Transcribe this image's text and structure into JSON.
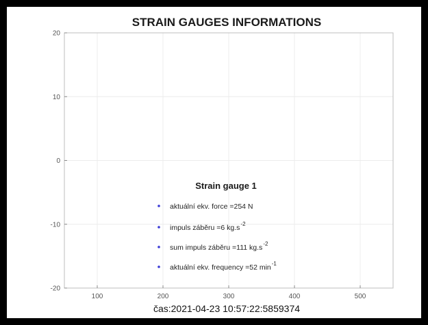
{
  "chart_data": {
    "type": "scatter",
    "title": "STRAIN GAUGES INFORMATIONS",
    "xlabel": "",
    "ylabel": "",
    "xlim": [
      50,
      550
    ],
    "ylim": [
      -20,
      20
    ],
    "xticks": [
      100,
      200,
      300,
      400,
      500
    ],
    "yticks": [
      -20,
      -10,
      0,
      10,
      20
    ],
    "grid": true,
    "series": []
  },
  "legend": {
    "title": "Strain gauge 1",
    "marker_color": "#3b3bd6",
    "items": [
      {
        "text": "aktuální ekv. force =254 N",
        "sup": ""
      },
      {
        "text": "impuls záběru =6 kg.s",
        "sup": "-2"
      },
      {
        "text": "sum impuls záběru =111 kg.s",
        "sup": "-2"
      },
      {
        "text": "aktuální ekv. frequency  =52 min",
        "sup": "-1"
      }
    ]
  },
  "footer": {
    "timestamp": "čas:2021-04-23 10:57:22:5859374"
  }
}
